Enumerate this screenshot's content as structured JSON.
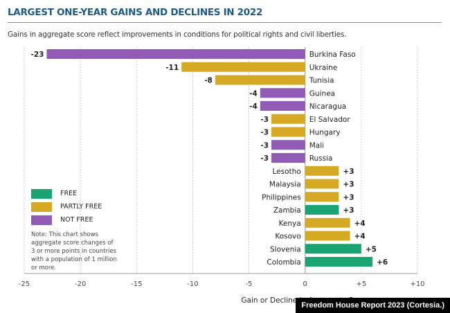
{
  "title": "LARGEST ONE-YEAR GAINS AND DECLINES IN 2022",
  "subtitle": "Gains in aggregate score reflect improvements in conditions for political rights and civil liberties.",
  "legend": [
    {
      "label": "FREE",
      "color": "#1aa373"
    },
    {
      "label": "PARTLY FREE",
      "color": "#d6a925"
    },
    {
      "label": "NOT FREE",
      "color": "#8f5bb4"
    }
  ],
  "note": "Note: This chart shows aggregate score changes of 3 or more points in countries with a population of 1 million or more.",
  "credit": "Freedom House Report 2023 (Cortesia.)",
  "chart_data": {
    "type": "bar",
    "orientation": "horizontal",
    "title": "LARGEST ONE-YEAR GAINS AND DECLINES IN 2022",
    "xlabel": "Gain or Decline in Aggregate Score",
    "xlim": [
      -25,
      10
    ],
    "xticks": [
      "-25",
      "-20",
      "-15",
      "-10",
      "-5",
      "0",
      "+5",
      "+10"
    ],
    "grid": "vertical dashed",
    "legend_position": "bottom-left",
    "categories": [
      "Burkina Faso",
      "Ukraine",
      "Tunisia",
      "Guinea",
      "Nicaragua",
      "El Salvador",
      "Hungary",
      "Mali",
      "Russia",
      "Lesotho",
      "Malaysia",
      "Philippines",
      "Zambia",
      "Kenya",
      "Kosovo",
      "Slovenia",
      "Colombia"
    ],
    "values": [
      -23,
      -11,
      -8,
      -4,
      -4,
      -3,
      -3,
      -3,
      -3,
      3,
      3,
      3,
      3,
      4,
      4,
      5,
      6
    ],
    "value_labels": [
      "-23",
      "-11",
      "-8",
      "-4",
      "-4",
      "-3",
      "-3",
      "-3",
      "-3",
      "+3",
      "+3",
      "+3",
      "+3",
      "+4",
      "+4",
      "+5",
      "+6"
    ],
    "status": [
      "NOT FREE",
      "PARTLY FREE",
      "PARTLY FREE",
      "NOT FREE",
      "NOT FREE",
      "PARTLY FREE",
      "PARTLY FREE",
      "NOT FREE",
      "NOT FREE",
      "PARTLY FREE",
      "PARTLY FREE",
      "PARTLY FREE",
      "FREE",
      "PARTLY FREE",
      "PARTLY FREE",
      "FREE",
      "FREE"
    ]
  }
}
